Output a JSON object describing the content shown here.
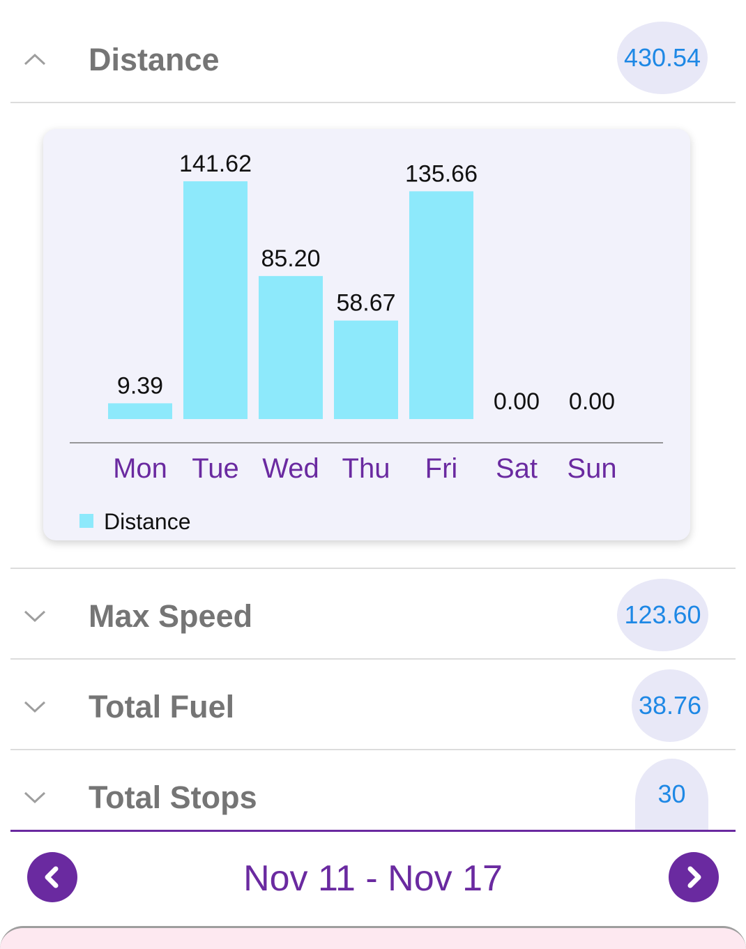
{
  "metrics": {
    "distance": {
      "title": "Distance",
      "value": "430.54",
      "expanded": true
    },
    "max_speed": {
      "title": "Max Speed",
      "value": "123.60",
      "expanded": false
    },
    "total_fuel": {
      "title": "Total Fuel",
      "value": "38.76",
      "expanded": false
    },
    "total_stops": {
      "title": "Total Stops",
      "value": "30",
      "expanded": false
    }
  },
  "chart_data": {
    "type": "bar",
    "categories": [
      "Mon",
      "Tue",
      "Wed",
      "Thu",
      "Fri",
      "Sat",
      "Sun"
    ],
    "series": [
      {
        "name": "Distance",
        "values": [
          9.39,
          141.62,
          85.2,
          58.67,
          135.66,
          0.0,
          0.0
        ]
      }
    ],
    "data_labels": [
      "9.39",
      "141.62",
      "85.20",
      "58.67",
      "135.66",
      "0.00",
      "0.00"
    ],
    "ylim": [
      0,
      141.62
    ],
    "grid": false,
    "legend": "bottom-left",
    "bar_color": "#8de9fb",
    "tick_color": "#6a2aa0"
  },
  "nav": {
    "date_range": "Nov 11 - Nov 17",
    "prev_icon": "chevron-left-icon",
    "next_icon": "chevron-right-icon"
  },
  "colors": {
    "accent": "#6a2aa0",
    "pill_bg": "#e8e8f7",
    "pill_text": "#1e88e5",
    "title_text": "#757575"
  }
}
